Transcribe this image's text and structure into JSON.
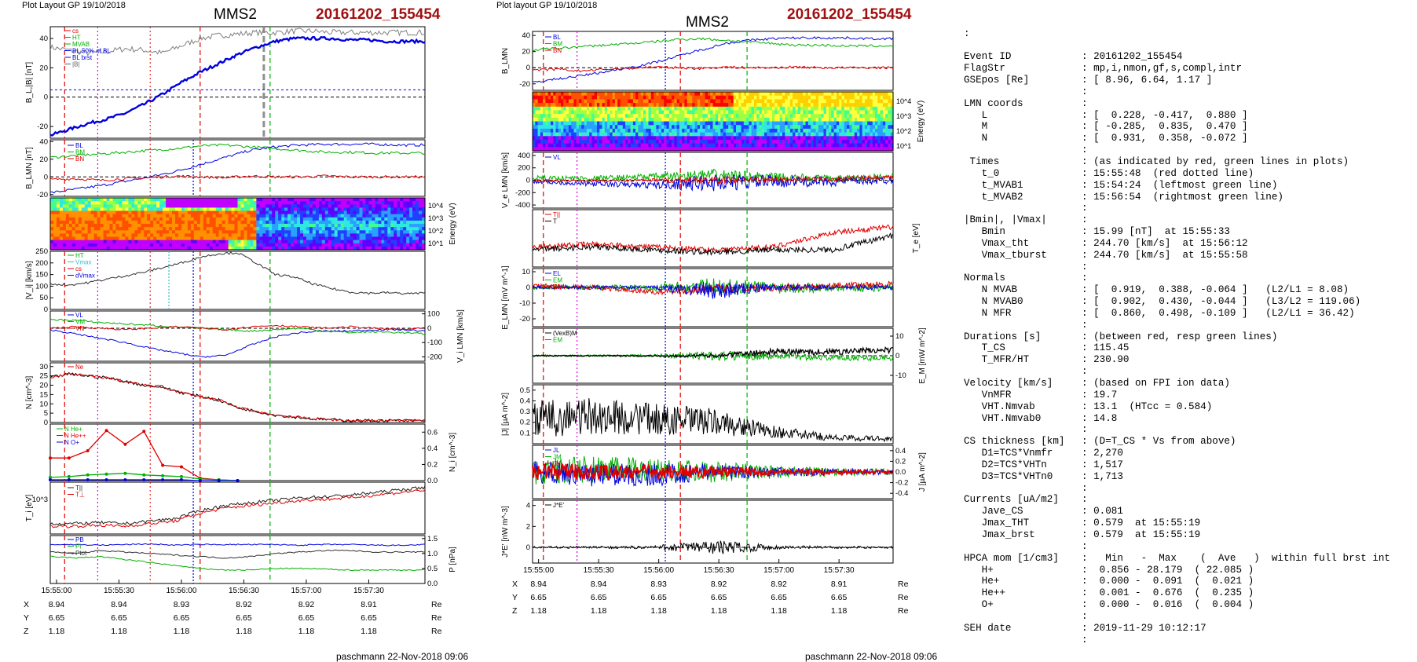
{
  "left_panel": {
    "plot_layout": "Plot Layout GP 19/10/2018",
    "spacecraft": "MMS2",
    "event": "20161202_155454",
    "footer": "paschmann 22-Nov-2018 09:06",
    "time_ticks": [
      "15:55:00",
      "15:55:30",
      "15:56:00",
      "15:56:30",
      "15:57:00",
      "15:57:30"
    ],
    "pos_table": {
      "X": [
        "8.94",
        "8.94",
        "8.93",
        "8.92",
        "8.92",
        "8.91"
      ],
      "Y": [
        "6.65",
        "6.65",
        "6.65",
        "6.65",
        "6.65",
        "6.65"
      ],
      "Z": [
        "1.18",
        "1.18",
        "1.18",
        "1.18",
        "1.18",
        "1.18"
      ],
      "unit": "Re"
    }
  },
  "right_panel": {
    "plot_layout": "Plot layout GP 19/10/2018",
    "spacecraft": "MMS2",
    "event": "20161202_155454",
    "footer": "paschmann 22-Nov-2018 09:06",
    "time_ticks": [
      "15:55:00",
      "15:55:30",
      "15:56:00",
      "15:56:30",
      "15:57:00",
      "15:57:30"
    ],
    "pos_table": {
      "X": [
        "8.94",
        "8.94",
        "8.93",
        "8.92",
        "8.92",
        "8.91"
      ],
      "Y": [
        "6.65",
        "6.65",
        "6.65",
        "6.65",
        "6.65",
        "6.65"
      ],
      "Z": [
        "1.18",
        "1.18",
        "1.18",
        "1.18",
        "1.18",
        "1.18"
      ],
      "unit": "Re"
    }
  },
  "text_panel": {
    "top_colon": ":",
    "rows": [
      {
        "k": "Event ID",
        "v": ": 20161202_155454"
      },
      {
        "k": "FlagStr",
        "v": ": mp,i,nmon,gf,s,compl,intr"
      },
      {
        "k": "GSEpos [Re]",
        "v": ": [ 8.96, 6.64, 1.17 ]"
      },
      {
        "k": "",
        "v": ":"
      },
      {
        "k": "LMN coords",
        "v": ":"
      },
      {
        "k": "   L",
        "v": ": [  0.228, -0.417,  0.880 ]"
      },
      {
        "k": "   M",
        "v": ": [ -0.285,  0.835,  0.470 ]"
      },
      {
        "k": "   N",
        "v": ": [  0.931,  0.358, -0.072 ]"
      },
      {
        "k": "",
        "v": ":"
      },
      {
        "k": " Times",
        "v": ": (as indicated by red, green lines in plots)"
      },
      {
        "k": "   t_0",
        "v": ": 15:55:48  (red dotted line)"
      },
      {
        "k": "   t_MVAB1",
        "v": ": 15:54:24  (leftmost green line)"
      },
      {
        "k": "   t_MVAB2",
        "v": ": 15:56:54  (rightmost green line)"
      },
      {
        "k": "",
        "v": ":"
      },
      {
        "k": "|Bmin|, |Vmax|",
        "v": ":"
      },
      {
        "k": "   Bmin",
        "v": ": 15.99 [nT]  at 15:55:33"
      },
      {
        "k": "   Vmax_tht",
        "v": ": 244.70 [km/s]  at 15:56:12"
      },
      {
        "k": "   Vmax_tburst",
        "v": ": 244.70 [km/s]  at 15:55:58"
      },
      {
        "k": "",
        "v": ":"
      },
      {
        "k": "Normals",
        "v": ":"
      },
      {
        "k": "   N MVAB",
        "v": ": [  0.919,  0.388, -0.064 ]   (L2/L1 = 8.08)"
      },
      {
        "k": "   N MVAB0",
        "v": ": [  0.902,  0.430, -0.044 ]   (L3/L2 = 119.06)"
      },
      {
        "k": "   N MFR",
        "v": ": [  0.860,  0.498, -0.109 ]   (L2/L1 = 36.42)"
      },
      {
        "k": "",
        "v": ":"
      },
      {
        "k": "Durations [s]",
        "v": ": (between red, resp green lines)"
      },
      {
        "k": "   T_CS",
        "v": ": 115.45"
      },
      {
        "k": "   T_MFR/HT",
        "v": ": 230.90"
      },
      {
        "k": "",
        "v": ":"
      },
      {
        "k": "Velocity [km/s]",
        "v": ": (based on FPI ion data)"
      },
      {
        "k": "   VnMFR",
        "v": ": 19.7"
      },
      {
        "k": "   VHT.Nmvab",
        "v": ": 13.1  (HTcc = 0.584)"
      },
      {
        "k": "   VHT.Nmvab0",
        "v": ": 14.8"
      },
      {
        "k": "",
        "v": ":"
      },
      {
        "k": "CS thickness [km]",
        "v": ": (D=T_CS * Vs from above)"
      },
      {
        "k": "   D1=TCS*Vnmfr",
        "v": ": 2,270"
      },
      {
        "k": "   D2=TCS*VHTn",
        "v": ": 1,517"
      },
      {
        "k": "   D3=TCS*VHTn0",
        "v": ": 1,713"
      },
      {
        "k": "",
        "v": ":"
      },
      {
        "k": "Currents [uA/m2]",
        "v": ":"
      },
      {
        "k": "   Jave_CS",
        "v": ": 0.081"
      },
      {
        "k": "   Jmax_THT",
        "v": ": 0.579  at 15:55:19"
      },
      {
        "k": "   Jmax_brst",
        "v": ": 0.579  at 15:55:19"
      },
      {
        "k": "",
        "v": ":"
      },
      {
        "k": "HPCA mom [1/cm3]",
        "v": ":   Min   -  Max    (  Ave   )  within full brst int"
      },
      {
        "k": "   H+",
        "v": ":  0.856 - 28.179  ( 22.085 )"
      },
      {
        "k": "   He+",
        "v": ":  0.000 -  0.091  (  0.021 )"
      },
      {
        "k": "   He++",
        "v": ":  0.001 -  0.676  (  0.235 )"
      },
      {
        "k": "   O+",
        "v": ":  0.000 -  0.016  (  0.004 )"
      },
      {
        "k": "",
        "v": ":"
      },
      {
        "k": "SEH date",
        "v": ": 2019-11-29 10:12:17"
      },
      {
        "k": "",
        "v": ":"
      }
    ]
  },
  "colors": {
    "event_title": "#a01010",
    "red": "#e00000",
    "green": "#00b000",
    "blue": "#0000e0",
    "magenta": "#e000e0",
    "gray": "#808080"
  },
  "chart_data": [
    {
      "type": "line",
      "panel": "left-1",
      "ylabel": "B_L,|B| [nT]",
      "legend": [
        "cs",
        "HT",
        "MVAB",
        "BL,50% of BL",
        "BL brst",
        "|B|"
      ],
      "yticks": [
        "40",
        "20",
        "0",
        "-20"
      ],
      "ylim": [
        -28,
        48
      ],
      "x": [
        0,
        30,
        60,
        90,
        120,
        150,
        180,
        210,
        240,
        270,
        300,
        330,
        360,
        390,
        420,
        450,
        480,
        510,
        540,
        570,
        600
      ],
      "series": [
        {
          "name": "BL",
          "color": "#0000e0",
          "values": [
            -26,
            -22,
            -18,
            -15,
            -11,
            -5,
            2,
            10,
            17,
            23,
            29,
            34,
            38,
            40,
            40,
            40,
            39,
            39,
            38,
            38,
            38
          ]
        },
        {
          "name": "|B|",
          "color": "#808080",
          "values": [
            34,
            32,
            30,
            31,
            33,
            32,
            30,
            35,
            40,
            42,
            43,
            44,
            44,
            45,
            45,
            44,
            44,
            44,
            44,
            44,
            44
          ]
        }
      ]
    },
    {
      "type": "line",
      "panel": "left-2",
      "ylabel": "B_LMN [nT]",
      "legend": [
        "BL",
        "BM",
        "BN"
      ],
      "yticks": [
        "40",
        "30",
        "20",
        "10",
        "0",
        "-10",
        "-20"
      ],
      "ylim": [
        -22,
        42
      ],
      "x": [
        0,
        40,
        80,
        120,
        160,
        200,
        240,
        280,
        320,
        360,
        400,
        440,
        480,
        520,
        560,
        600
      ],
      "series": [
        {
          "name": "BL",
          "color": "#0000e0",
          "values": [
            -18,
            -14,
            -10,
            -5,
            0,
            6,
            14,
            22,
            30,
            34,
            36,
            37,
            37,
            37,
            36,
            36
          ]
        },
        {
          "name": "BM",
          "color": "#00b000",
          "values": [
            22,
            24,
            26,
            28,
            30,
            32,
            35,
            36,
            34,
            32,
            30,
            28,
            28,
            27,
            27,
            27
          ]
        },
        {
          "name": "BN",
          "color": "#e00000",
          "values": [
            -3,
            -2,
            -4,
            -2,
            -1,
            1,
            0,
            -1,
            1,
            0,
            0,
            1,
            0,
            0,
            0,
            0
          ]
        }
      ]
    },
    {
      "type": "heatmap",
      "panel": "left-3",
      "ylabel": "Energy (eV)",
      "yticks": [
        "10^4",
        "10^3",
        "10^2",
        "10^1"
      ]
    },
    {
      "type": "line",
      "panel": "left-4",
      "ylabel": "|V_i| [km/s]",
      "legend": [
        "HT",
        "Vmax",
        "cs",
        "dVmax"
      ],
      "yticks": [
        "250",
        "200",
        "150",
        "100",
        "50",
        "0"
      ],
      "ylim": [
        0,
        250
      ],
      "x": [
        0,
        30,
        60,
        90,
        120,
        150,
        180,
        210,
        240,
        270,
        300,
        330,
        360,
        390,
        420,
        450,
        480,
        510,
        540,
        570,
        600
      ],
      "series": [
        {
          "name": "|Vi|",
          "color": "#303030",
          "values": [
            110,
            105,
            115,
            130,
            145,
            160,
            180,
            200,
            225,
            240,
            244,
            200,
            150,
            140,
            110,
            90,
            75,
            70,
            72,
            68,
            70
          ]
        }
      ]
    },
    {
      "type": "line",
      "panel": "left-5",
      "ylabel": "V_i LMN [km/s]",
      "legend": [
        "VL",
        "VM",
        "VN"
      ],
      "yticks": [
        "100",
        "0",
        "-100",
        "-200"
      ],
      "ylim": [
        -230,
        120
      ],
      "x": [
        0,
        40,
        80,
        120,
        160,
        200,
        240,
        280,
        320,
        360,
        400,
        440,
        480,
        520,
        560,
        600
      ],
      "series": [
        {
          "name": "VL",
          "color": "#0000e0",
          "values": [
            -10,
            -40,
            -70,
            -100,
            -140,
            -170,
            -200,
            -190,
            -120,
            -60,
            -30,
            -20,
            -20,
            -10,
            -10,
            -20
          ]
        },
        {
          "name": "VM",
          "color": "#00b000",
          "values": [
            60,
            55,
            40,
            30,
            20,
            10,
            0,
            -10,
            -20,
            -10,
            0,
            -20,
            -30,
            -25,
            -30,
            -40
          ]
        },
        {
          "name": "VN",
          "color": "#e00000",
          "values": [
            0,
            10,
            0,
            -10,
            0,
            10,
            0,
            -10,
            10,
            20,
            10,
            0,
            10,
            0,
            -10,
            0
          ]
        }
      ]
    },
    {
      "type": "line",
      "panel": "left-6",
      "ylabel": "N [cm^-3]",
      "legend": [
        "Ne"
      ],
      "yticks": [
        "30",
        "25",
        "20",
        "15",
        "10",
        "5",
        "0"
      ],
      "ylim": [
        0,
        32
      ],
      "x": [
        0,
        30,
        60,
        90,
        120,
        150,
        180,
        210,
        240,
        270,
        300,
        330,
        360,
        390,
        420,
        450,
        480,
        510,
        540,
        570,
        600
      ],
      "series": [
        {
          "name": "Ne",
          "color": "#e00000",
          "values": [
            24,
            26,
            25,
            24,
            22,
            20,
            19,
            16,
            14,
            12,
            8,
            6,
            4,
            3,
            2,
            1.5,
            1,
            1,
            1,
            1,
            1
          ]
        }
      ]
    },
    {
      "type": "line",
      "panel": "left-7",
      "ylabel": "N_i [cm^-3]",
      "legend": [
        "N He+",
        "N He++",
        "N O+"
      ],
      "yticks": [
        "0.6",
        "0.4",
        "0.2",
        "0.0"
      ],
      "ylim": [
        0,
        0.7
      ],
      "x": [
        0,
        30,
        60,
        90,
        120,
        150,
        180,
        210,
        240,
        270,
        300
      ],
      "series": [
        {
          "name": "N He++",
          "color": "#e00000",
          "values": [
            0.28,
            0.28,
            0.37,
            0.62,
            0.45,
            0.61,
            0.19,
            0.17,
            0.03,
            0.01,
            0.0
          ]
        },
        {
          "name": "N He+",
          "color": "#00b000",
          "values": [
            0.04,
            0.05,
            0.07,
            0.08,
            0.09,
            0.07,
            0.06,
            0.05,
            0.02,
            0.01,
            0.0
          ]
        },
        {
          "name": "N O+",
          "color": "#0000e0",
          "values": [
            0.01,
            0.01,
            0.01,
            0.01,
            0.01,
            0.01,
            0.01,
            0.01,
            0.0,
            0.0,
            0.0
          ]
        }
      ]
    },
    {
      "type": "line",
      "panel": "left-8",
      "ylabel": "T_i [eV]",
      "legend": [
        "T||",
        "T⊥"
      ],
      "yticks": [
        "10^3"
      ],
      "x": [
        0,
        40,
        80,
        120,
        160,
        200,
        240,
        280,
        320,
        360,
        400,
        440,
        480,
        520,
        560,
        600
      ]
    },
    {
      "type": "line",
      "panel": "left-9",
      "ylabel": "P [nPa]",
      "legend": [
        "PB",
        "Pi",
        "Ptot"
      ],
      "yticks": [
        "1.5",
        "1.0",
        "0.5",
        "0.0"
      ],
      "ylim": [
        0,
        1.6
      ],
      "x": [
        0,
        40,
        80,
        120,
        160,
        200,
        240,
        280,
        320,
        360,
        400,
        440,
        480,
        520,
        560,
        600
      ],
      "series": [
        {
          "name": "Ptot",
          "color": "#303030",
          "values": [
            1.05,
            1.0,
            1.1,
            1.05,
            1.0,
            0.95,
            0.9,
            0.85,
            0.9,
            1.0,
            1.05,
            1.1,
            1.1,
            1.05,
            1.05,
            1.05
          ]
        },
        {
          "name": "PB",
          "color": "#0000e0",
          "values": [
            1.3,
            1.3,
            1.28,
            1.3,
            1.32,
            1.28,
            1.3,
            1.3,
            1.3,
            1.3,
            1.28,
            1.3,
            1.3,
            1.28,
            1.27,
            1.3
          ]
        },
        {
          "name": "Pi",
          "color": "#00b000",
          "values": [
            0.9,
            0.85,
            0.9,
            0.8,
            0.7,
            0.6,
            0.5,
            0.45,
            0.45,
            0.5,
            0.5,
            0.48,
            0.45,
            0.45,
            0.45,
            0.45
          ]
        }
      ]
    },
    {
      "type": "line",
      "panel": "right-1",
      "ylabel": "B_LMN",
      "legend": [
        "BL",
        "BM",
        "BN"
      ],
      "yticks": [
        "40",
        "20",
        "0",
        "-20"
      ],
      "ylim": [
        -28,
        45
      ],
      "x": [
        0,
        40,
        80,
        120,
        160,
        200,
        240,
        280,
        320,
        360,
        400,
        440,
        480,
        520,
        560,
        600
      ],
      "series": [
        {
          "name": "BL",
          "color": "#0000e0",
          "values": [
            -18,
            -14,
            -10,
            -5,
            0,
            6,
            14,
            22,
            30,
            34,
            36,
            37,
            37,
            37,
            36,
            36
          ]
        },
        {
          "name": "BM",
          "color": "#00b000",
          "values": [
            22,
            24,
            26,
            28,
            30,
            32,
            35,
            36,
            34,
            32,
            30,
            28,
            28,
            27,
            27,
            27
          ]
        },
        {
          "name": "BN",
          "color": "#e00000",
          "values": [
            -3,
            -2,
            -4,
            -2,
            -1,
            1,
            0,
            -1,
            1,
            0,
            0,
            1,
            0,
            0,
            0,
            0
          ]
        }
      ]
    },
    {
      "type": "heatmap",
      "panel": "right-2",
      "ylabel": "Energy (eV)",
      "yticks": [
        "10^4",
        "10^3",
        "10^2",
        "10^1"
      ]
    },
    {
      "type": "line",
      "panel": "right-3",
      "ylabel": "V_e LMN [km/s]",
      "legend": [
        "VL"
      ],
      "yticks": [
        "400",
        "200",
        "0",
        "-200",
        "-400"
      ],
      "ylim": [
        -450,
        450
      ]
    },
    {
      "type": "line",
      "panel": "right-4",
      "ylabel": "T_e [eV]",
      "legend": [
        "T||",
        "T"
      ]
    },
    {
      "type": "line",
      "panel": "right-5",
      "ylabel": "E_LMN [mV m^-1]",
      "legend": [
        "EL",
        "EM",
        "EN"
      ],
      "yticks": [
        "10",
        "0",
        "-10",
        "-20"
      ],
      "ylim": [
        -25,
        12
      ]
    },
    {
      "type": "line",
      "panel": "right-6",
      "ylabel": "E_M [mW m^-2]",
      "legend": [
        "(VexB)M",
        "EM"
      ],
      "yticks": [
        "10",
        "0",
        "-10"
      ],
      "ylim": [
        -14,
        14
      ]
    },
    {
      "type": "line",
      "panel": "right-7",
      "ylabel": "|J| [µA m^-2]",
      "yticks": [
        "0.5",
        "0.4",
        "0.3",
        "0.2",
        "0.1"
      ],
      "ylim": [
        0,
        0.55
      ]
    },
    {
      "type": "line",
      "panel": "right-8",
      "ylabel": "J [µA m^-2]",
      "legend": [
        "JL",
        "JM",
        "JN"
      ],
      "yticks": [
        "0.4",
        "0.2",
        "0.0",
        "-0.2",
        "-0.4"
      ],
      "ylim": [
        -0.5,
        0.5
      ]
    },
    {
      "type": "line",
      "panel": "right-9",
      "ylabel": "J*E' [nW m^-3]",
      "legend": [
        "J*E'"
      ],
      "yticks": [
        "4",
        "2",
        "0"
      ],
      "ylim": [
        -1.5,
        4.5
      ]
    }
  ]
}
